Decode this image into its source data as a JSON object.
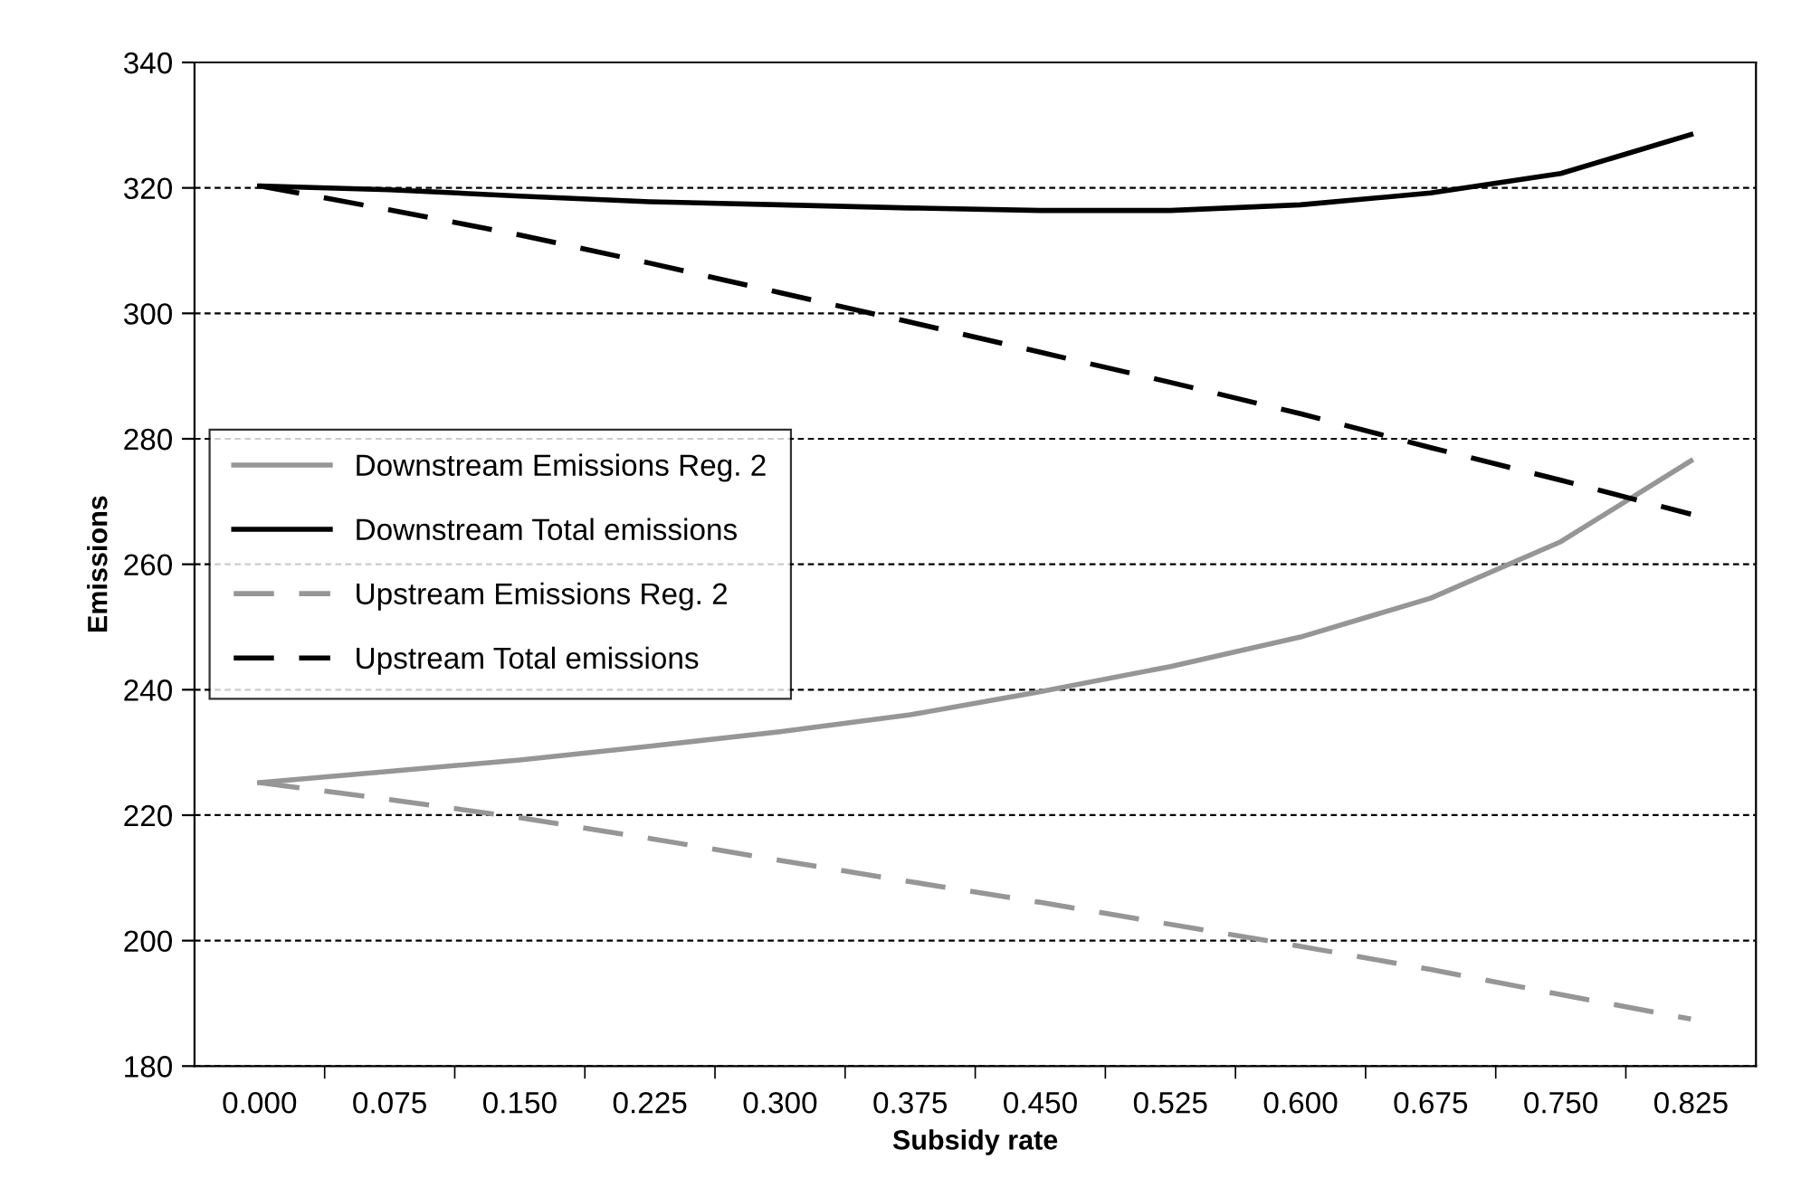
{
  "chart_data": {
    "type": "line",
    "xlabel": "Subsidy rate",
    "ylabel": "Emissions",
    "categories": [
      "0.000",
      "0.075",
      "0.150",
      "0.225",
      "0.300",
      "0.375",
      "0.450",
      "0.525",
      "0.600",
      "0.675",
      "0.750",
      "0.825"
    ],
    "series": [
      {
        "name": "Downstream Emissions Reg. 2",
        "color": "#969696",
        "line_style": "solid",
        "values": [
          225.2,
          227.0,
          228.8,
          231.0,
          233.3,
          236.0,
          239.7,
          243.7,
          248.4,
          254.6,
          263.6,
          276.5
        ]
      },
      {
        "name": "Downstream Total emissions",
        "color": "#000000",
        "line_style": "solid",
        "values": [
          320.3,
          319.7,
          318.7,
          317.8,
          317.3,
          316.8,
          316.4,
          316.4,
          317.3,
          319.2,
          322.3,
          328.5
        ]
      },
      {
        "name": "Upstream Emissions Reg. 2",
        "color": "#969696",
        "line_style": "dashed",
        "values": [
          225.2,
          222.5,
          219.6,
          216.3,
          212.8,
          209.4,
          206.1,
          202.6,
          199.1,
          195.4,
          191.4,
          187.5
        ]
      },
      {
        "name": "Upstream Total emissions",
        "color": "#000000",
        "line_style": "dashed",
        "values": [
          320.3,
          316.5,
          312.5,
          308.0,
          303.3,
          298.6,
          293.8,
          289.0,
          284.0,
          278.6,
          273.4,
          268.0
        ]
      }
    ],
    "ylim": [
      180,
      340
    ],
    "yticks": [
      180,
      200,
      220,
      240,
      260,
      280,
      300,
      320,
      340
    ],
    "grid": "y",
    "legend": "center left",
    "marker": "none"
  }
}
